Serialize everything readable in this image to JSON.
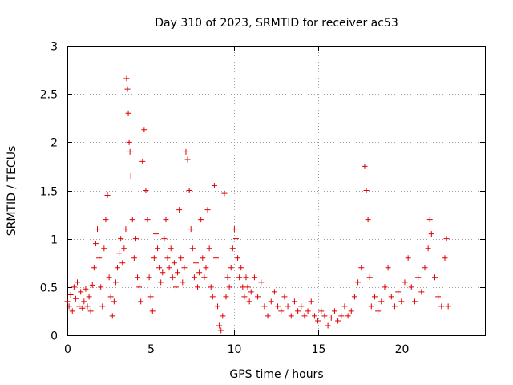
{
  "chart_data": {
    "type": "scatter",
    "title": "Day 310 of 2023, SRMTID for receiver ac53",
    "xlabel": "GPS time / hours",
    "ylabel": "SRMTID / TECUs",
    "xlim": [
      0,
      25
    ],
    "ylim": [
      0,
      3
    ],
    "xticks": [
      0,
      5,
      10,
      15,
      20
    ],
    "xtick_labels": [
      "0",
      "5",
      "10",
      "15",
      "20"
    ],
    "yticks": [
      0,
      0.5,
      1,
      1.5,
      2,
      2.5,
      3
    ],
    "ytick_labels": [
      "0",
      "0.5",
      "1",
      "1.5",
      "2",
      "2.5",
      "3"
    ],
    "grid": true,
    "marker": "+",
    "color": "#e00000",
    "series": [
      {
        "name": "SRMTID",
        "points": [
          [
            0.0,
            0.35
          ],
          [
            0.1,
            0.3
          ],
          [
            0.2,
            0.42
          ],
          [
            0.3,
            0.25
          ],
          [
            0.4,
            0.5
          ],
          [
            0.5,
            0.38
          ],
          [
            0.6,
            0.55
          ],
          [
            0.7,
            0.3
          ],
          [
            0.8,
            0.45
          ],
          [
            0.9,
            0.28
          ],
          [
            1.0,
            0.35
          ],
          [
            1.1,
            0.48
          ],
          [
            1.2,
            0.3
          ],
          [
            1.3,
            0.4
          ],
          [
            1.4,
            0.25
          ],
          [
            1.5,
            0.52
          ],
          [
            1.6,
            0.7
          ],
          [
            1.7,
            0.95
          ],
          [
            1.8,
            1.1
          ],
          [
            1.9,
            0.8
          ],
          [
            2.0,
            0.5
          ],
          [
            2.1,
            0.3
          ],
          [
            2.2,
            0.9
          ],
          [
            2.3,
            1.2
          ],
          [
            2.4,
            1.45
          ],
          [
            2.5,
            0.6
          ],
          [
            2.6,
            0.4
          ],
          [
            2.7,
            0.2
          ],
          [
            2.8,
            0.35
          ],
          [
            2.9,
            0.55
          ],
          [
            3.0,
            0.7
          ],
          [
            3.1,
            0.85
          ],
          [
            3.2,
            1.0
          ],
          [
            3.3,
            0.75
          ],
          [
            3.4,
            0.9
          ],
          [
            3.5,
            1.1
          ],
          [
            3.55,
            2.66
          ],
          [
            3.6,
            2.55
          ],
          [
            3.65,
            2.3
          ],
          [
            3.7,
            2.0
          ],
          [
            3.75,
            1.9
          ],
          [
            3.8,
            1.65
          ],
          [
            3.9,
            1.2
          ],
          [
            4.0,
            0.8
          ],
          [
            4.1,
            1.0
          ],
          [
            4.2,
            0.6
          ],
          [
            4.3,
            0.5
          ],
          [
            4.4,
            0.35
          ],
          [
            4.5,
            1.8
          ],
          [
            4.6,
            2.13
          ],
          [
            4.7,
            1.5
          ],
          [
            4.8,
            1.2
          ],
          [
            4.9,
            0.6
          ],
          [
            5.0,
            0.4
          ],
          [
            5.1,
            0.25
          ],
          [
            5.2,
            0.8
          ],
          [
            5.3,
            1.05
          ],
          [
            5.4,
            0.9
          ],
          [
            5.5,
            0.7
          ],
          [
            5.6,
            0.55
          ],
          [
            5.7,
            0.65
          ],
          [
            5.8,
            1.0
          ],
          [
            5.9,
            1.2
          ],
          [
            6.0,
            0.8
          ],
          [
            6.1,
            0.7
          ],
          [
            6.2,
            0.9
          ],
          [
            6.3,
            0.6
          ],
          [
            6.4,
            0.75
          ],
          [
            6.5,
            0.5
          ],
          [
            6.6,
            0.65
          ],
          [
            6.7,
            1.3
          ],
          [
            6.8,
            0.8
          ],
          [
            6.9,
            0.55
          ],
          [
            7.0,
            0.7
          ],
          [
            7.1,
            1.9
          ],
          [
            7.2,
            1.82
          ],
          [
            7.3,
            1.5
          ],
          [
            7.4,
            1.1
          ],
          [
            7.5,
            0.9
          ],
          [
            7.6,
            0.6
          ],
          [
            7.7,
            0.75
          ],
          [
            7.8,
            0.5
          ],
          [
            7.9,
            0.65
          ],
          [
            8.0,
            1.2
          ],
          [
            8.1,
            0.8
          ],
          [
            8.2,
            0.6
          ],
          [
            8.3,
            0.7
          ],
          [
            8.4,
            1.3
          ],
          [
            8.5,
            0.9
          ],
          [
            8.6,
            0.5
          ],
          [
            8.7,
            0.4
          ],
          [
            8.8,
            1.55
          ],
          [
            8.9,
            0.8
          ],
          [
            9.0,
            0.3
          ],
          [
            9.1,
            0.1
          ],
          [
            9.2,
            0.05
          ],
          [
            9.3,
            0.2
          ],
          [
            9.4,
            1.47
          ],
          [
            9.5,
            0.4
          ],
          [
            9.6,
            0.6
          ],
          [
            9.7,
            0.5
          ],
          [
            9.8,
            0.7
          ],
          [
            9.9,
            0.9
          ],
          [
            10.0,
            1.1
          ],
          [
            10.1,
            1.0
          ],
          [
            10.2,
            0.8
          ],
          [
            10.3,
            0.6
          ],
          [
            10.4,
            0.7
          ],
          [
            10.5,
            0.5
          ],
          [
            10.6,
            0.4
          ],
          [
            10.7,
            0.6
          ],
          [
            10.8,
            0.5
          ],
          [
            10.9,
            0.35
          ],
          [
            11.0,
            0.45
          ],
          [
            11.2,
            0.6
          ],
          [
            11.4,
            0.4
          ],
          [
            11.6,
            0.55
          ],
          [
            11.8,
            0.3
          ],
          [
            12.0,
            0.2
          ],
          [
            12.2,
            0.35
          ],
          [
            12.4,
            0.45
          ],
          [
            12.6,
            0.3
          ],
          [
            12.8,
            0.25
          ],
          [
            13.0,
            0.4
          ],
          [
            13.2,
            0.3
          ],
          [
            13.4,
            0.2
          ],
          [
            13.6,
            0.35
          ],
          [
            13.8,
            0.25
          ],
          [
            14.0,
            0.3
          ],
          [
            14.2,
            0.2
          ],
          [
            14.4,
            0.25
          ],
          [
            14.6,
            0.35
          ],
          [
            14.8,
            0.2
          ],
          [
            15.0,
            0.15
          ],
          [
            15.2,
            0.25
          ],
          [
            15.4,
            0.2
          ],
          [
            15.6,
            0.1
          ],
          [
            15.8,
            0.18
          ],
          [
            16.0,
            0.25
          ],
          [
            16.2,
            0.15
          ],
          [
            16.4,
            0.2
          ],
          [
            16.6,
            0.3
          ],
          [
            16.8,
            0.2
          ],
          [
            17.0,
            0.25
          ],
          [
            17.2,
            0.4
          ],
          [
            17.4,
            0.55
          ],
          [
            17.6,
            0.7
          ],
          [
            17.8,
            1.75
          ],
          [
            17.9,
            1.5
          ],
          [
            18.0,
            1.2
          ],
          [
            18.1,
            0.6
          ],
          [
            18.2,
            0.3
          ],
          [
            18.4,
            0.4
          ],
          [
            18.6,
            0.25
          ],
          [
            18.8,
            0.35
          ],
          [
            19.0,
            0.5
          ],
          [
            19.2,
            0.7
          ],
          [
            19.4,
            0.4
          ],
          [
            19.6,
            0.3
          ],
          [
            19.8,
            0.45
          ],
          [
            20.0,
            0.35
          ],
          [
            20.2,
            0.55
          ],
          [
            20.4,
            0.8
          ],
          [
            20.6,
            0.5
          ],
          [
            20.8,
            0.35
          ],
          [
            21.0,
            0.6
          ],
          [
            21.2,
            0.45
          ],
          [
            21.4,
            0.7
          ],
          [
            21.6,
            0.9
          ],
          [
            21.7,
            1.2
          ],
          [
            21.8,
            1.05
          ],
          [
            22.0,
            0.6
          ],
          [
            22.2,
            0.4
          ],
          [
            22.4,
            0.3
          ],
          [
            22.6,
            0.8
          ],
          [
            22.7,
            1.0
          ],
          [
            22.8,
            0.3
          ]
        ]
      }
    ]
  }
}
